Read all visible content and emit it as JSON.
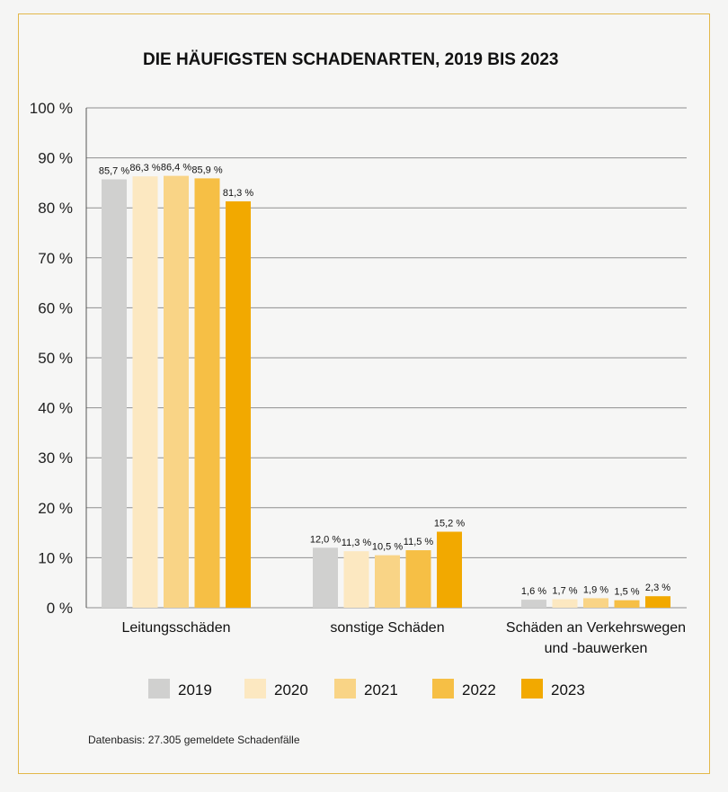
{
  "chart_data": {
    "type": "bar",
    "title": "DIE HÄUFIGSTEN SCHADENARTEN, 2019 BIS 2023",
    "categories": [
      [
        "Leitungsschäden"
      ],
      [
        "sonstige Schäden"
      ],
      [
        "Schäden an Verkehrswegen",
        "und -bauwerken"
      ]
    ],
    "series": [
      {
        "name": "2019",
        "color": "#d0d0cf",
        "values": [
          85.7,
          12.0,
          1.6
        ],
        "labels": [
          "85,7 %",
          "12,0 %",
          "1,6 %"
        ]
      },
      {
        "name": "2020",
        "color": "#fce8c1",
        "values": [
          86.3,
          11.3,
          1.7
        ],
        "labels": [
          "86,3 %",
          "11,3 %",
          "1,7 %"
        ]
      },
      {
        "name": "2021",
        "color": "#f9d486",
        "values": [
          86.4,
          10.5,
          1.9
        ],
        "labels": [
          "86,4 %",
          "10,5 %",
          "1,9 %"
        ]
      },
      {
        "name": "2022",
        "color": "#f6bf45",
        "values": [
          85.9,
          11.5,
          1.5
        ],
        "labels": [
          "85,9 %",
          "11,5 %",
          "1,5 %"
        ]
      },
      {
        "name": "2023",
        "color": "#f2a900",
        "values": [
          81.3,
          15.2,
          2.3
        ],
        "labels": [
          "81,3 %",
          "15,2 %",
          "2,3 %"
        ]
      }
    ],
    "ylim": [
      0,
      100
    ],
    "yticks": [
      0,
      10,
      20,
      30,
      40,
      50,
      60,
      70,
      80,
      90,
      100
    ],
    "ytick_labels": [
      "0 %",
      "10 %",
      "20 %",
      "30 %",
      "40 %",
      "50 %",
      "60 %",
      "70 %",
      "80 %",
      "90 %",
      "100 %"
    ],
    "grid": true,
    "legend_position": "bottom",
    "footnote": "Datenbasis: 27.305 gemeldete Schadenfälle"
  }
}
